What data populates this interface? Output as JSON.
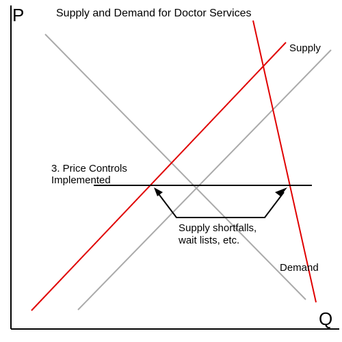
{
  "title": "Supply and Demand for Doctor Services",
  "axes": {
    "y_label": "P",
    "x_label": "Q"
  },
  "curve_labels": {
    "supply": "Supply",
    "demand": "Demand"
  },
  "annotations": {
    "price_controls_line1": "3. Price Controls",
    "price_controls_line2": "Implemented",
    "shortfall_line1": "Supply shortfalls,",
    "shortfall_line2": "wait lists, etc."
  },
  "colors": {
    "shifted_curves": "#e00000",
    "original_curves": "#aaaaaa",
    "price_ceiling": "#000000",
    "axes": "#000000"
  }
}
